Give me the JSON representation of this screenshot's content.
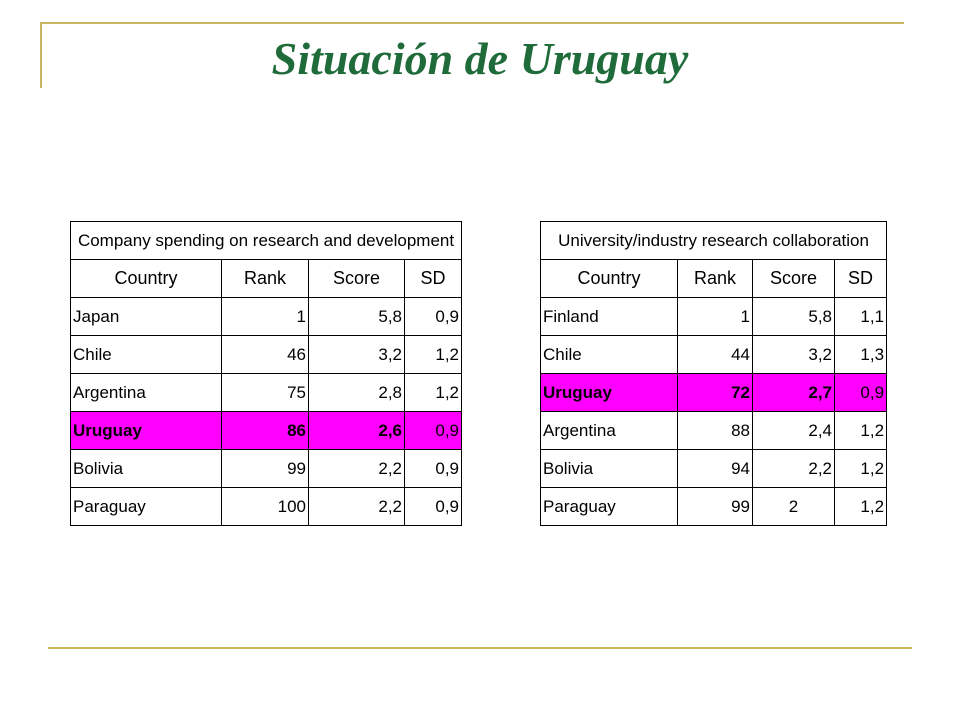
{
  "slide": {
    "title": "Situación de Uruguay"
  },
  "table_left": {
    "caption": "Company spending on research and development",
    "headers": [
      "Country",
      "Rank",
      "Score",
      "SD"
    ],
    "rows": [
      {
        "country": "Japan",
        "rank": "1",
        "score": "5,8",
        "sd": "0,9"
      },
      {
        "country": "Chile",
        "rank": "46",
        "score": "3,2",
        "sd": "1,2"
      },
      {
        "country": "Argentina",
        "rank": "75",
        "score": "2,8",
        "sd": "1,2"
      },
      {
        "country": "Uruguay",
        "rank": "86",
        "score": "2,6",
        "sd": "0,9"
      },
      {
        "country": "Bolivia",
        "rank": "99",
        "score": "2,2",
        "sd": "0,9"
      },
      {
        "country": "Paraguay",
        "rank": "100",
        "score": "2,2",
        "sd": "0,9"
      }
    ],
    "highlight_color": "#ff00ff"
  },
  "table_right": {
    "caption": "University/industry research collaboration",
    "headers": [
      "Country",
      "Rank",
      "Score",
      "SD"
    ],
    "rows": [
      {
        "country": "Finland",
        "rank": "1",
        "score": "5,8",
        "sd": "1,1"
      },
      {
        "country": "Chile",
        "rank": "44",
        "score": "3,2",
        "sd": "1,3"
      },
      {
        "country": "Uruguay",
        "rank": "72",
        "score": "2,7",
        "sd": "0,9"
      },
      {
        "country": "Argentina",
        "rank": "88",
        "score": "2,4",
        "sd": "1,2"
      },
      {
        "country": "Bolivia",
        "rank": "94",
        "score": "2,2",
        "sd": "1,2"
      },
      {
        "country": "Paraguay",
        "rank": "99",
        "score": "2",
        "sd": "1,2"
      }
    ],
    "highlight_color": "#ff00ff"
  },
  "colors": {
    "title": "#1f6b3a",
    "rule": "#c8b560"
  }
}
